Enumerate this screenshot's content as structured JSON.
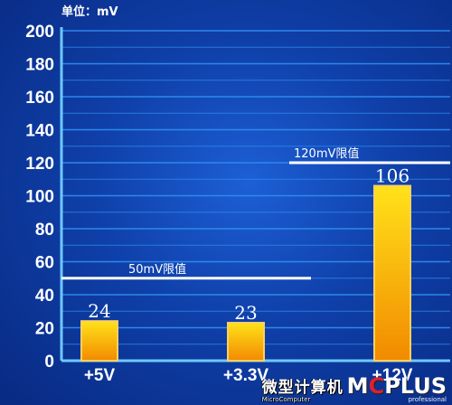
{
  "chart_data": {
    "type": "bar",
    "unit_label": "单位：mV",
    "categories": [
      "+5V",
      "+3.3V",
      "+12V"
    ],
    "values": [
      24,
      23,
      106
    ],
    "ylim": [
      0,
      200
    ],
    "yticks": [
      0,
      20,
      40,
      60,
      80,
      100,
      120,
      140,
      160,
      180,
      200
    ],
    "grid": true,
    "limits": [
      {
        "label": "50mV限值",
        "value": 50,
        "applies_to": [
          "+5V",
          "+3.3V"
        ]
      },
      {
        "label": "120mV限值",
        "value": 120,
        "applies_to": [
          "+12V"
        ]
      }
    ]
  },
  "colors": {
    "grid": "#2f8cf0",
    "axis": "#6ec8ff",
    "bar_top": "#ffe21a",
    "bar_bottom": "#f28a00",
    "bar_border": "#ffd060",
    "limit_line": "#ffffff",
    "text": "#ffffff"
  },
  "watermark": {
    "cn": "微型计算机",
    "en": "MicroComputer",
    "logo_a": "M",
    "logo_b": "C",
    "logo_c": "PLUS",
    "sub": "professional"
  }
}
